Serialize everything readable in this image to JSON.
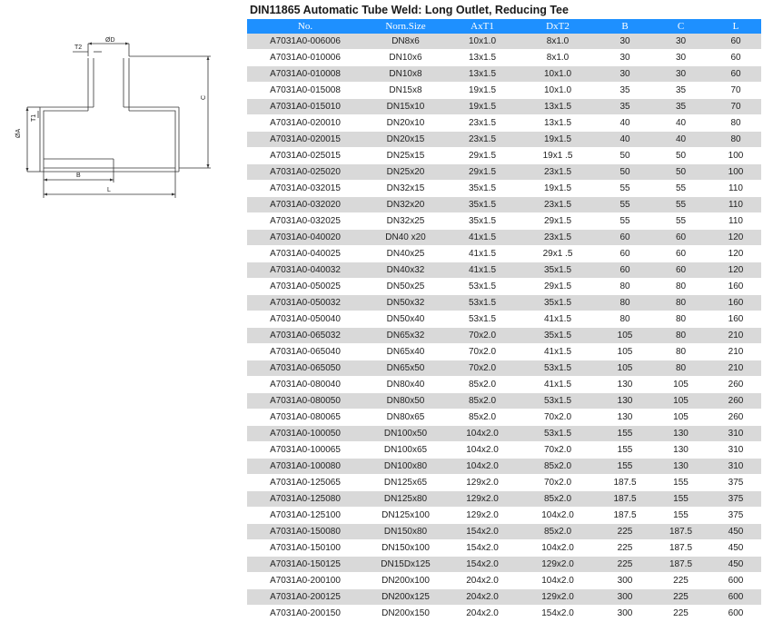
{
  "title": "DIN11865 Automatic Tube Weld: Long Outlet, Reducing Tee",
  "drawing": {
    "labels": {
      "d": "ØD",
      "t2": "T2",
      "c": "C",
      "t1": "T1",
      "a": "ØA",
      "b": "B",
      "l": "L"
    }
  },
  "table": {
    "headers": [
      "No.",
      "Norn.Size",
      "AxT1",
      "DxT2",
      "B",
      "C",
      "L"
    ],
    "rows": [
      [
        "A7031A0-006006",
        "DN8x6",
        "10x1.0",
        "8x1.0",
        "30",
        "30",
        "60"
      ],
      [
        "A7031A0-010006",
        "DN10x6",
        "13x1.5",
        "8x1.0",
        "30",
        "30",
        "60"
      ],
      [
        "A7031A0-010008",
        "DN10x8",
        "13x1.5",
        "10x1.0",
        "30",
        "30",
        "60"
      ],
      [
        "A7031A0-015008",
        "DN15x8",
        "19x1.5",
        "10x1.0",
        "35",
        "35",
        "70"
      ],
      [
        "A7031A0-015010",
        "DN15x10",
        "19x1.5",
        "13x1.5",
        "35",
        "35",
        "70"
      ],
      [
        "A7031A0-020010",
        "DN20x10",
        "23x1.5",
        "13x1.5",
        "40",
        "40",
        "80"
      ],
      [
        "A7031A0-020015",
        "DN20x15",
        "23x1.5",
        "19x1.5",
        "40",
        "40",
        "80"
      ],
      [
        "A7031A0-025015",
        "DN25x15",
        "29x1.5",
        "19x1 .5",
        "50",
        "50",
        "100"
      ],
      [
        "A7031A0-025020",
        "DN25x20",
        "29x1.5",
        "23x1.5",
        "50",
        "50",
        "100"
      ],
      [
        "A7031A0-032015",
        "DN32x15",
        "35x1.5",
        "19x1.5",
        "55",
        "55",
        "110"
      ],
      [
        "A7031A0-032020",
        "DN32x20",
        "35x1.5",
        "23x1.5",
        "55",
        "55",
        "110"
      ],
      [
        "A7031A0-032025",
        "DN32x25",
        "35x1.5",
        "29x1.5",
        "55",
        "55",
        "110"
      ],
      [
        "A7031A0-040020",
        "DN40 x20",
        "41x1.5",
        "23x1.5",
        "60",
        "60",
        "120"
      ],
      [
        "A7031A0-040025",
        "DN40x25",
        "41x1.5",
        "29x1 .5",
        "60",
        "60",
        "120"
      ],
      [
        "A7031A0-040032",
        "DN40x32",
        "41x1.5",
        "35x1.5",
        "60",
        "60",
        "120"
      ],
      [
        "A7031A0-050025",
        "DN50x25",
        "53x1.5",
        "29x1.5",
        "80",
        "80",
        "160"
      ],
      [
        "A7031A0-050032",
        "DN50x32",
        "53x1.5",
        "35x1.5",
        "80",
        "80",
        "160"
      ],
      [
        "A7031A0-050040",
        "DN50x40",
        "53x1.5",
        "41x1.5",
        "80",
        "80",
        "160"
      ],
      [
        "A7031A0-065032",
        "DN65x32",
        "70x2.0",
        "35x1.5",
        "105",
        "80",
        "210"
      ],
      [
        "A7031A0-065040",
        "DN65x40",
        "70x2.0",
        "41x1.5",
        "105",
        "80",
        "210"
      ],
      [
        "A7031A0-065050",
        "DN65x50",
        "70x2.0",
        "53x1.5",
        "105",
        "80",
        "210"
      ],
      [
        "A7031A0-080040",
        "DN80x40",
        "85x2.0",
        "41x1.5",
        "130",
        "105",
        "260"
      ],
      [
        "A7031A0-080050",
        "DN80x50",
        "85x2.0",
        "53x1.5",
        "130",
        "105",
        "260"
      ],
      [
        "A7031A0-080065",
        "DN80x65",
        "85x2.0",
        "70x2.0",
        "130",
        "105",
        "260"
      ],
      [
        "A7031A0-100050",
        "DN100x50",
        "104x2.0",
        "53x1.5",
        "155",
        "130",
        "310"
      ],
      [
        "A7031A0-100065",
        "DN100x65",
        "104x2.0",
        "70x2.0",
        "155",
        "130",
        "310"
      ],
      [
        "A7031A0-100080",
        "DN100x80",
        "104x2.0",
        "85x2.0",
        "155",
        "130",
        "310"
      ],
      [
        "A7031A0-125065",
        "DN125x65",
        "129x2.0",
        "70x2.0",
        "187.5",
        "155",
        "375"
      ],
      [
        "A7031A0-125080",
        "DN125x80",
        "129x2.0",
        "85x2.0",
        "187.5",
        "155",
        "375"
      ],
      [
        "A7031A0-125100",
        "DN125x100",
        "129x2.0",
        "104x2.0",
        "187.5",
        "155",
        "375"
      ],
      [
        "A7031A0-150080",
        "DN150x80",
        "154x2.0",
        "85x2.0",
        "225",
        "187.5",
        "450"
      ],
      [
        "A7031A0-150100",
        "DN150x100",
        "154x2.0",
        "104x2.0",
        "225",
        "187.5",
        "450"
      ],
      [
        "A7031A0-150125",
        "DN15Dx125",
        "154x2.0",
        "129x2.0",
        "225",
        "187.5",
        "450"
      ],
      [
        "A7031A0-200100",
        "DN200x100",
        "204x2.0",
        "104x2.0",
        "300",
        "225",
        "600"
      ],
      [
        "A7031A0-200125",
        "DN200x125",
        "204x2.0",
        "129x2.0",
        "300",
        "225",
        "600"
      ],
      [
        "A7031A0-200150",
        "DN200x150",
        "204x2.0",
        "154x2.0",
        "300",
        "225",
        "600"
      ]
    ]
  }
}
